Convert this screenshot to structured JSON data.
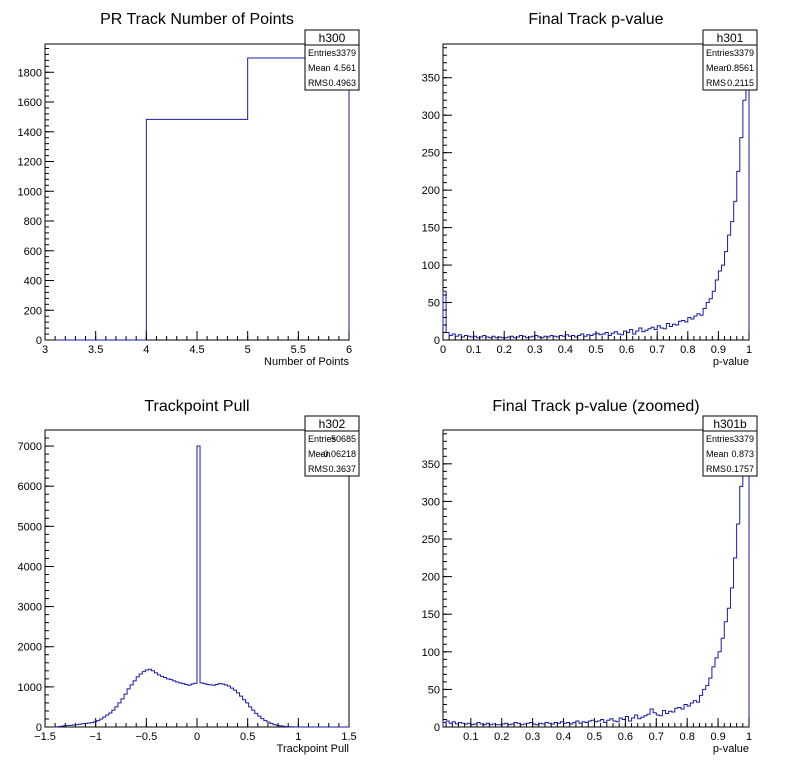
{
  "chart_data": [
    {
      "type": "histogram",
      "title": "PR Track Number of Points",
      "xlabel": "Number of Points",
      "ylabel": "",
      "xlim": [
        3,
        6
      ],
      "ylim": [
        0,
        1990
      ],
      "xticks": [
        3,
        3.5,
        4,
        4.5,
        5,
        5.5,
        6
      ],
      "xtick_labels": [
        "3",
        "3.5",
        "4",
        "4.5",
        "5",
        "5.5",
        "6"
      ],
      "yticks": [
        0,
        200,
        400,
        600,
        800,
        1000,
        1200,
        1400,
        1600,
        1800
      ],
      "ytick_labels": [
        "0",
        "200",
        "400",
        "600",
        "800",
        "1000",
        "1200",
        "1400",
        "1600",
        "1800"
      ],
      "bins": [
        [
          3,
          4,
          0
        ],
        [
          4,
          5,
          1483
        ],
        [
          5,
          6,
          1896
        ]
      ],
      "legend_position": "top-right",
      "stats": {
        "name": "h300",
        "rows": [
          [
            "Entries",
            "3379"
          ],
          [
            "Mean",
            "4.561"
          ],
          [
            "RMS",
            "0.4963"
          ]
        ]
      }
    },
    {
      "type": "histogram",
      "title": "Final Track p-value",
      "xlabel": "p-value",
      "ylabel": "",
      "xlim": [
        0,
        1
      ],
      "ylim": [
        0,
        395
      ],
      "xticks": [
        0,
        0.1,
        0.2,
        0.3,
        0.4,
        0.5,
        0.6,
        0.7,
        0.8,
        0.9,
        1
      ],
      "xtick_labels": [
        "0",
        "0.1",
        "0.2",
        "0.3",
        "0.4",
        "0.5",
        "0.6",
        "0.7",
        "0.8",
        "0.9",
        "1"
      ],
      "yticks": [
        0,
        50,
        100,
        150,
        200,
        250,
        300,
        350
      ],
      "ytick_labels": [
        "0",
        "50",
        "100",
        "150",
        "200",
        "250",
        "300",
        "350"
      ],
      "bin_start": 0,
      "bin_width": 0.01,
      "values": [
        65,
        10,
        6,
        8,
        5,
        7,
        4,
        6,
        5,
        4,
        5,
        3,
        4,
        6,
        4,
        3,
        5,
        3,
        4,
        3,
        3,
        4,
        5,
        3,
        4,
        6,
        5,
        3,
        4,
        5,
        6,
        4,
        3,
        5,
        4,
        6,
        5,
        4,
        6,
        5,
        7,
        5,
        6,
        4,
        6,
        8,
        5,
        7,
        6,
        8,
        9,
        7,
        8,
        10,
        6,
        9,
        11,
        8,
        7,
        12,
        10,
        14,
        8,
        12,
        16,
        11,
        13,
        15,
        17,
        14,
        19,
        16,
        15,
        22,
        18,
        21,
        20,
        25,
        26,
        24,
        30,
        28,
        32,
        35,
        33,
        42,
        50,
        55,
        65,
        80,
        92,
        100,
        118,
        140,
        158,
        185,
        225,
        270,
        320,
        350
      ],
      "legend_position": "top-right",
      "stats": {
        "name": "h301",
        "rows": [
          [
            "Entries",
            "3379"
          ],
          [
            "Mean",
            "0.8561"
          ],
          [
            "RMS",
            "0.2115"
          ]
        ]
      }
    },
    {
      "type": "histogram",
      "title": "Trackpoint Pull",
      "xlabel": "Trackpoint Pull",
      "ylabel": "",
      "xlim": [
        -1.5,
        1.5
      ],
      "ylim": [
        0,
        7400
      ],
      "xticks": [
        -1.5,
        -1,
        -0.5,
        0,
        0.5,
        1,
        1.5
      ],
      "xtick_labels": [
        "−1.5",
        "−1",
        "−0.5",
        "0",
        "0.5",
        "1",
        "1.5"
      ],
      "yticks": [
        0,
        1000,
        2000,
        3000,
        4000,
        5000,
        6000,
        7000
      ],
      "ytick_labels": [
        "0",
        "1000",
        "2000",
        "3000",
        "4000",
        "5000",
        "6000",
        "7000"
      ],
      "bin_start": -1.5,
      "bin_width": 0.03,
      "values": [
        0,
        0,
        0,
        0,
        10,
        20,
        30,
        40,
        40,
        50,
        60,
        70,
        80,
        90,
        100,
        110,
        130,
        160,
        200,
        250,
        300,
        350,
        420,
        500,
        600,
        700,
        820,
        950,
        1050,
        1150,
        1250,
        1320,
        1380,
        1420,
        1440,
        1400,
        1350,
        1300,
        1260,
        1230,
        1200,
        1180,
        1150,
        1120,
        1100,
        1080,
        1060,
        1040,
        1070,
        1090,
        7000,
        1100,
        1080,
        1060,
        1050,
        1040,
        1060,
        1080,
        1070,
        1050,
        1020,
        970,
        920,
        850,
        770,
        680,
        600,
        500,
        420,
        340,
        270,
        210,
        160,
        120,
        90,
        60,
        40,
        30,
        20,
        10,
        5,
        2,
        1,
        0,
        0,
        0,
        0,
        0,
        0,
        0,
        0,
        0,
        0,
        0,
        0,
        0,
        0,
        0,
        0,
        0
      ],
      "legend_position": "top-right",
      "stats": {
        "name": "h302",
        "rows": [
          [
            "Entries",
            "50685"
          ],
          [
            "Mean",
            "−0.06218"
          ],
          [
            "RMS",
            "0.3637"
          ]
        ]
      }
    },
    {
      "type": "histogram",
      "title": "Final Track p-value (zoomed)",
      "xlabel": "p-value",
      "ylabel": "",
      "xlim": [
        0.01,
        1
      ],
      "ylim": [
        0,
        395
      ],
      "xticks": [
        0.1,
        0.2,
        0.3,
        0.4,
        0.5,
        0.6,
        0.7,
        0.8,
        0.9,
        1
      ],
      "xtick_labels": [
        "0.1",
        "0.2",
        "0.3",
        "0.4",
        "0.5",
        "0.6",
        "0.7",
        "0.8",
        "0.9",
        "1"
      ],
      "yticks": [
        0,
        50,
        100,
        150,
        200,
        250,
        300,
        350
      ],
      "ytick_labels": [
        "0",
        "50",
        "100",
        "150",
        "200",
        "250",
        "300",
        "350"
      ],
      "bin_start": 0.01,
      "bin_width": 0.01,
      "values": [
        6,
        8,
        5,
        7,
        4,
        6,
        5,
        4,
        5,
        3,
        4,
        6,
        4,
        3,
        5,
        3,
        4,
        3,
        3,
        4,
        5,
        3,
        4,
        6,
        5,
        3,
        4,
        5,
        6,
        4,
        3,
        5,
        4,
        6,
        5,
        4,
        6,
        5,
        7,
        5,
        6,
        4,
        6,
        8,
        5,
        7,
        6,
        8,
        9,
        7,
        8,
        10,
        6,
        9,
        11,
        8,
        7,
        12,
        10,
        14,
        8,
        12,
        16,
        11,
        13,
        15,
        17,
        24,
        19,
        16,
        15,
        22,
        18,
        21,
        20,
        25,
        26,
        24,
        30,
        28,
        32,
        35,
        33,
        42,
        50,
        55,
        65,
        80,
        92,
        100,
        118,
        140,
        158,
        185,
        225,
        270,
        320,
        335,
        350
      ],
      "legend_position": "top-right",
      "stats": {
        "name": "h301b",
        "rows": [
          [
            "Entries",
            "3379"
          ],
          [
            "Mean",
            "0.873"
          ],
          [
            "RMS",
            "0.1757"
          ]
        ]
      }
    }
  ],
  "colors": {
    "histogram_line": "#1a1aa6",
    "frame": "#000000",
    "background": "#ffffff"
  }
}
